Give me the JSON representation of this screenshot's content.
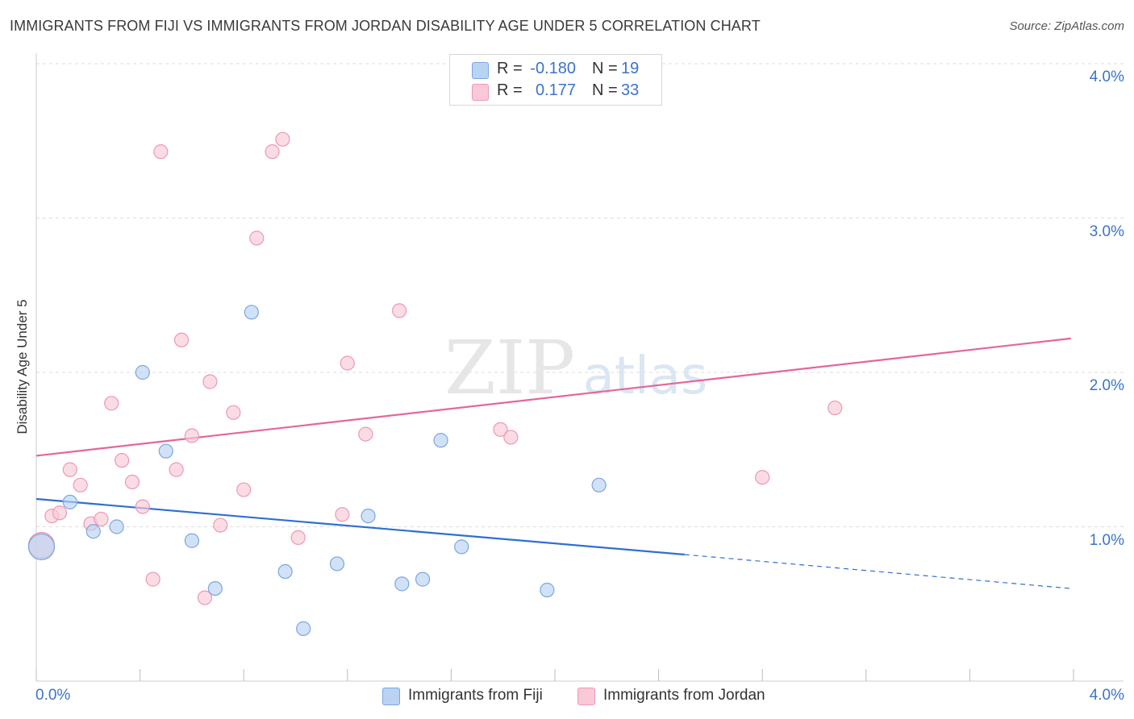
{
  "title": "IMMIGRANTS FROM FIJI VS IMMIGRANTS FROM JORDAN DISABILITY AGE UNDER 5 CORRELATION CHART",
  "source": "Source: ZipAtlas.com",
  "watermark": {
    "zip": "ZIP",
    "atlas": "atlas"
  },
  "legend": {
    "r_label": "R =",
    "n_label": "N =",
    "fiji": {
      "r": "-0.180",
      "n": "19"
    },
    "jordan": {
      "r": "0.177",
      "n": "33"
    }
  },
  "colors": {
    "fiji_fill": "#b9d3f2",
    "fiji_stroke": "#7ba6e0",
    "fiji_line": "#2f6fd0",
    "jordan_fill": "#f9c9d7",
    "jordan_stroke": "#ee98b2",
    "jordan_line": "#e3679a",
    "tick_text": "#3b73c8",
    "grid": "#dddddd"
  },
  "chart_data": {
    "type": "scatter",
    "title": "IMMIGRANTS FROM FIJI VS IMMIGRANTS FROM JORDAN DISABILITY AGE UNDER 5 CORRELATION CHART",
    "xlabel": "",
    "ylabel": "Disability Age Under 5",
    "xlim": [
      0,
      4
    ],
    "ylim": [
      0,
      4.2
    ],
    "x_tick_labels": [
      "0.0%",
      "4.0%"
    ],
    "y_ticks": [
      1,
      2,
      3,
      4
    ],
    "y_tick_labels": [
      "1.0%",
      "2.0%",
      "3.0%",
      "4.0%"
    ],
    "grid": true,
    "series": [
      {
        "name": "Immigrants from Fiji",
        "points": [
          {
            "x": 0.02,
            "y": 0.87,
            "big": true
          },
          {
            "x": 0.13,
            "y": 1.16
          },
          {
            "x": 0.22,
            "y": 0.97
          },
          {
            "x": 0.31,
            "y": 1.0
          },
          {
            "x": 0.41,
            "y": 2.0
          },
          {
            "x": 0.5,
            "y": 1.49
          },
          {
            "x": 0.6,
            "y": 0.91
          },
          {
            "x": 0.69,
            "y": 0.6
          },
          {
            "x": 0.83,
            "y": 2.39
          },
          {
            "x": 0.96,
            "y": 0.71
          },
          {
            "x": 1.03,
            "y": 0.34
          },
          {
            "x": 1.16,
            "y": 0.76
          },
          {
            "x": 1.28,
            "y": 1.07
          },
          {
            "x": 1.41,
            "y": 0.63
          },
          {
            "x": 1.49,
            "y": 0.66
          },
          {
            "x": 1.56,
            "y": 1.56
          },
          {
            "x": 1.64,
            "y": 0.87
          },
          {
            "x": 1.97,
            "y": 0.59
          },
          {
            "x": 2.17,
            "y": 1.27
          }
        ],
        "trend": {
          "x1": 0,
          "y1": 1.18,
          "x2": 2.5,
          "y2": 0.82,
          "dash_to_x": 3.99,
          "dash_to_y": 0.6
        }
      },
      {
        "name": "Immigrants from Jordan",
        "points": [
          {
            "x": 0.02,
            "y": 0.88,
            "big": true
          },
          {
            "x": 0.06,
            "y": 1.07
          },
          {
            "x": 0.09,
            "y": 1.09
          },
          {
            "x": 0.13,
            "y": 1.37
          },
          {
            "x": 0.17,
            "y": 1.27
          },
          {
            "x": 0.21,
            "y": 1.02
          },
          {
            "x": 0.25,
            "y": 1.05
          },
          {
            "x": 0.29,
            "y": 1.8
          },
          {
            "x": 0.33,
            "y": 1.43
          },
          {
            "x": 0.37,
            "y": 1.29
          },
          {
            "x": 0.41,
            "y": 1.13
          },
          {
            "x": 0.45,
            "y": 0.66
          },
          {
            "x": 0.48,
            "y": 3.43
          },
          {
            "x": 0.54,
            "y": 1.37
          },
          {
            "x": 0.56,
            "y": 2.21
          },
          {
            "x": 0.6,
            "y": 1.59
          },
          {
            "x": 0.65,
            "y": 0.54
          },
          {
            "x": 0.67,
            "y": 1.94
          },
          {
            "x": 0.71,
            "y": 1.01
          },
          {
            "x": 0.76,
            "y": 1.74
          },
          {
            "x": 0.8,
            "y": 1.24
          },
          {
            "x": 0.85,
            "y": 2.87
          },
          {
            "x": 0.91,
            "y": 3.43
          },
          {
            "x": 0.95,
            "y": 3.51
          },
          {
            "x": 1.01,
            "y": 0.93
          },
          {
            "x": 1.18,
            "y": 1.08
          },
          {
            "x": 1.2,
            "y": 2.06
          },
          {
            "x": 1.27,
            "y": 1.6
          },
          {
            "x": 1.4,
            "y": 2.4
          },
          {
            "x": 1.79,
            "y": 1.63
          },
          {
            "x": 1.83,
            "y": 1.58
          },
          {
            "x": 2.8,
            "y": 1.32
          },
          {
            "x": 3.08,
            "y": 1.77
          }
        ],
        "trend": {
          "x1": 0,
          "y1": 1.46,
          "x2": 3.99,
          "y2": 2.22
        }
      }
    ]
  }
}
